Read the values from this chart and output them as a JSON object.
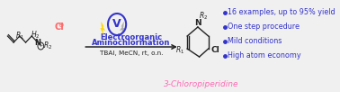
{
  "bg_color": "#f0f0f0",
  "title_text": "3-Chloropiperidine",
  "title_color": "#ff69b4",
  "title_fontsize": 6.5,
  "reaction_label1": "Electroorganic",
  "reaction_label2": "Aminochlorination",
  "reaction_color": "#3333cc",
  "reaction_fontsize": 6.0,
  "conditions_text": "TBAI, MeCN, rt, o.n.",
  "conditions_color": "#222222",
  "conditions_fontsize": 5.2,
  "bullet_points": [
    "16 examples, up to 95% yield",
    "One step procedure",
    "Mild conditions",
    "High atom economy"
  ],
  "bullet_color": "#3333cc",
  "bullet_fontsize": 5.8,
  "voltage_circle_color": "#3333cc",
  "lightning_yellow": "#FFD700",
  "lightning_gray": "#aaaaaa",
  "cl_minus_color": "#ff6666",
  "arrow_color": "#222222",
  "mol_color": "#222222"
}
